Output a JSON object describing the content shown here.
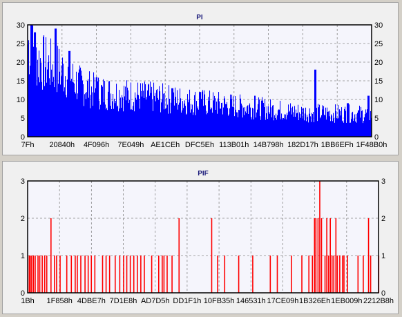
{
  "chart_data": [
    {
      "type": "bar",
      "title": "PI",
      "color": "#0000ff",
      "ylim": [
        0,
        30
      ],
      "yticks": [
        "0",
        "5",
        "10",
        "15",
        "20",
        "25",
        "30"
      ],
      "xticks": [
        "7Fh",
        "20840h",
        "4F096h",
        "7E049h",
        "AE1CEh",
        "DFC5Eh",
        "113B01h",
        "14B798h",
        "182D17h",
        "1BB6EFh",
        "1F48B0h"
      ],
      "grid": true,
      "profile_points": [
        [
          0,
          27
        ],
        [
          0.03,
          22
        ],
        [
          0.1,
          19
        ],
        [
          0.15,
          15
        ],
        [
          0.2,
          13
        ],
        [
          0.3,
          12
        ],
        [
          0.4,
          11
        ],
        [
          0.5,
          10
        ],
        [
          0.6,
          9
        ],
        [
          0.7,
          8
        ],
        [
          0.8,
          7
        ],
        [
          1.0,
          6.5
        ]
      ],
      "peaks": [
        [
          0.01,
          30
        ],
        [
          0.02,
          28
        ],
        [
          0.045,
          24
        ],
        [
          0.08,
          29
        ],
        [
          0.12,
          23
        ],
        [
          0.2,
          16
        ],
        [
          0.35,
          14
        ],
        [
          0.42,
          13
        ],
        [
          0.5,
          12
        ],
        [
          0.66,
          11
        ],
        [
          0.835,
          18
        ],
        [
          0.93,
          9
        ],
        [
          0.99,
          11
        ]
      ]
    },
    {
      "type": "bar",
      "title": "PIF",
      "color": "#ff0000",
      "ylim": [
        0,
        3
      ],
      "yticks": [
        "0",
        "1",
        "2",
        "3"
      ],
      "xticks": [
        "1Bh",
        "1F858h",
        "4DBE7h",
        "7D1E8h",
        "AD7D5h",
        "DD1F1h",
        "10FB35h",
        "146531h",
        "17CE09h",
        "1B326Eh",
        "1EB009h",
        "2212B8h"
      ],
      "grid": true,
      "spikes": [
        [
          0.003,
          1
        ],
        [
          0.006,
          1
        ],
        [
          0.01,
          1
        ],
        [
          0.015,
          1
        ],
        [
          0.02,
          1
        ],
        [
          0.028,
          1
        ],
        [
          0.033,
          1
        ],
        [
          0.04,
          1
        ],
        [
          0.047,
          1
        ],
        [
          0.053,
          1
        ],
        [
          0.065,
          2
        ],
        [
          0.075,
          1
        ],
        [
          0.081,
          1
        ],
        [
          0.091,
          1
        ],
        [
          0.11,
          1
        ],
        [
          0.123,
          1
        ],
        [
          0.134,
          1
        ],
        [
          0.14,
          1
        ],
        [
          0.15,
          1
        ],
        [
          0.162,
          1
        ],
        [
          0.171,
          1
        ],
        [
          0.18,
          1
        ],
        [
          0.19,
          1
        ],
        [
          0.212,
          1
        ],
        [
          0.222,
          1
        ],
        [
          0.232,
          1
        ],
        [
          0.248,
          1
        ],
        [
          0.261,
          1
        ],
        [
          0.272,
          1
        ],
        [
          0.281,
          1
        ],
        [
          0.291,
          1
        ],
        [
          0.301,
          1
        ],
        [
          0.311,
          1
        ],
        [
          0.321,
          1
        ],
        [
          0.331,
          1
        ],
        [
          0.352,
          1
        ],
        [
          0.372,
          1
        ],
        [
          0.382,
          1
        ],
        [
          0.387,
          1
        ],
        [
          0.396,
          1
        ],
        [
          0.41,
          1
        ],
        [
          0.43,
          2
        ],
        [
          0.523,
          2
        ],
        [
          0.54,
          1
        ],
        [
          0.56,
          1
        ],
        [
          0.6,
          1
        ],
        [
          0.64,
          1
        ],
        [
          0.69,
          1
        ],
        [
          0.71,
          1
        ],
        [
          0.75,
          1
        ],
        [
          0.78,
          1
        ],
        [
          0.81,
          1
        ],
        [
          0.8,
          1
        ],
        [
          0.816,
          2
        ],
        [
          0.82,
          2
        ],
        [
          0.826,
          2
        ],
        [
          0.831,
          3
        ],
        [
          0.836,
          2
        ],
        [
          0.846,
          1
        ],
        [
          0.851,
          2
        ],
        [
          0.856,
          1
        ],
        [
          0.861,
          2
        ],
        [
          0.866,
          1
        ],
        [
          0.871,
          1
        ],
        [
          0.877,
          2
        ],
        [
          0.881,
          1
        ],
        [
          0.888,
          1
        ],
        [
          0.896,
          1
        ],
        [
          0.9,
          1
        ],
        [
          0.91,
          1
        ],
        [
          0.94,
          1
        ],
        [
          0.955,
          1
        ],
        [
          0.97,
          2
        ],
        [
          0.976,
          1
        ],
        [
          0.999,
          1
        ]
      ]
    }
  ]
}
